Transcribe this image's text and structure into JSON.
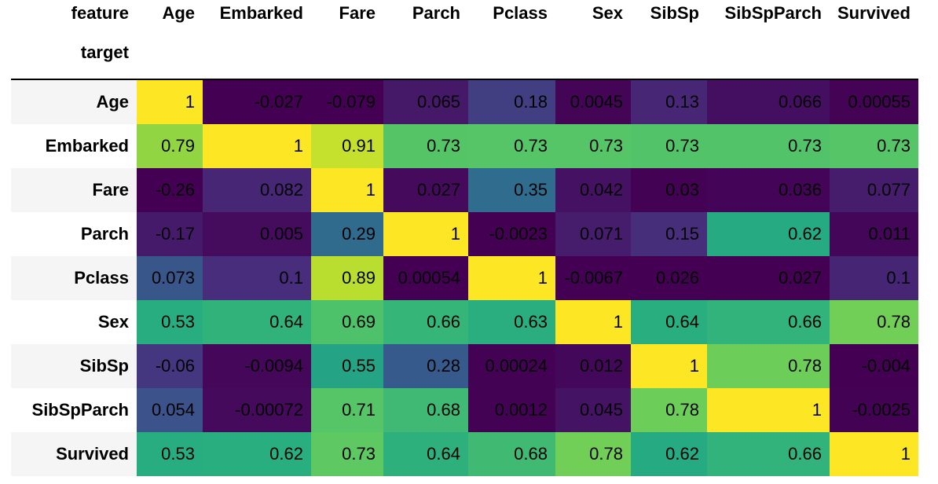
{
  "chart_data": {
    "type": "heatmap",
    "columns_label": "feature",
    "rows_label": "target",
    "columns": [
      "Age",
      "Embarked",
      "Fare",
      "Parch",
      "Pclass",
      "Sex",
      "SibSp",
      "SibSpParch",
      "Survived"
    ],
    "rows": [
      "Age",
      "Embarked",
      "Fare",
      "Parch",
      "Pclass",
      "Sex",
      "SibSp",
      "SibSpParch",
      "Survived"
    ],
    "values": [
      [
        1,
        -0.027,
        -0.079,
        0.065,
        0.18,
        0.0045,
        0.13,
        0.066,
        0.00055
      ],
      [
        0.79,
        1,
        0.91,
        0.73,
        0.73,
        0.73,
        0.73,
        0.73,
        0.73
      ],
      [
        -0.26,
        0.082,
        1,
        0.027,
        0.35,
        0.042,
        0.03,
        0.036,
        0.077
      ],
      [
        -0.17,
        0.005,
        0.29,
        1,
        -0.0023,
        0.071,
        0.15,
        0.62,
        0.011
      ],
      [
        0.073,
        0.1,
        0.89,
        0.00054,
        1,
        -0.0067,
        0.026,
        0.027,
        0.1
      ],
      [
        0.53,
        0.64,
        0.69,
        0.66,
        0.63,
        1,
        0.64,
        0.66,
        0.78
      ],
      [
        -0.06,
        -0.0094,
        0.55,
        0.28,
        0.00024,
        0.012,
        1,
        0.78,
        -0.004
      ],
      [
        0.054,
        -0.00072,
        0.71,
        0.68,
        0.0012,
        0.045,
        0.78,
        1,
        -0.0025
      ],
      [
        0.53,
        0.62,
        0.73,
        0.64,
        0.68,
        0.78,
        0.62,
        0.66,
        1
      ]
    ],
    "labels": [
      [
        "1",
        "-0.027",
        "-0.079",
        "0.065",
        "0.18",
        "0.0045",
        "0.13",
        "0.066",
        "0.00055"
      ],
      [
        "0.79",
        "1",
        "0.91",
        "0.73",
        "0.73",
        "0.73",
        "0.73",
        "0.73",
        "0.73"
      ],
      [
        "-0.26",
        "0.082",
        "1",
        "0.027",
        "0.35",
        "0.042",
        "0.03",
        "0.036",
        "0.077"
      ],
      [
        "-0.17",
        "0.005",
        "0.29",
        "1",
        "-0.0023",
        "0.071",
        "0.15",
        "0.62",
        "0.011"
      ],
      [
        "0.073",
        "0.1",
        "0.89",
        "0.00054",
        "1",
        "-0.0067",
        "0.026",
        "0.027",
        "0.1"
      ],
      [
        "0.53",
        "0.64",
        "0.69",
        "0.66",
        "0.63",
        "1",
        "0.64",
        "0.66",
        "0.78"
      ],
      [
        "-0.06",
        "-0.0094",
        "0.55",
        "0.28",
        "0.00024",
        "0.012",
        "1",
        "0.78",
        "-0.004"
      ],
      [
        "0.054",
        "-0.00072",
        "0.71",
        "0.68",
        "0.0012",
        "0.045",
        "0.78",
        "1",
        "-0.0025"
      ],
      [
        "0.53",
        "0.62",
        "0.73",
        "0.64",
        "0.68",
        "0.78",
        "0.62",
        "0.66",
        "1"
      ]
    ],
    "colormap": "viridis",
    "color_normalization": "per-column",
    "text_color": "#000000"
  }
}
